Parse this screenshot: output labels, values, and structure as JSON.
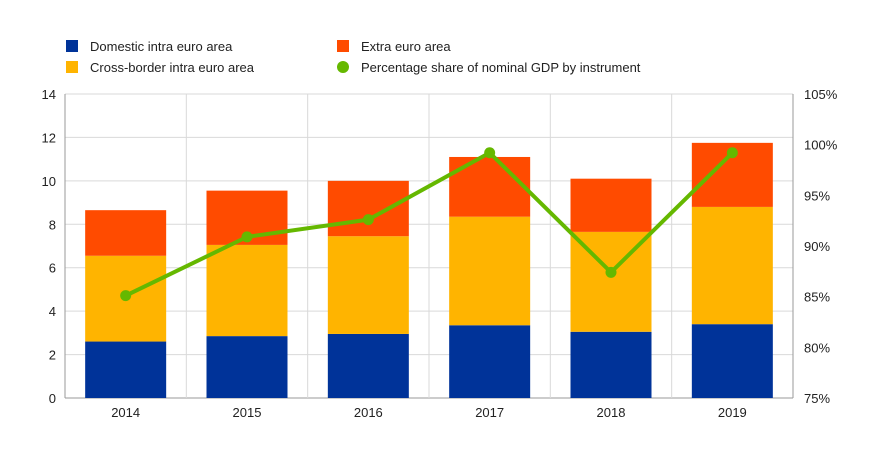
{
  "chart_data": {
    "type": "bar",
    "stacked": true,
    "categories": [
      "2014",
      "2015",
      "2016",
      "2017",
      "2018",
      "2019"
    ],
    "series": [
      {
        "name": "Domestic intra euro area",
        "color": "#003399",
        "values": [
          2.6,
          2.85,
          2.95,
          3.35,
          3.05,
          3.4
        ]
      },
      {
        "name": "Cross-border intra  euro area",
        "color": "#ffb400",
        "values": [
          3.95,
          4.2,
          4.5,
          5.0,
          4.6,
          5.4
        ]
      },
      {
        "name": "Extra euro area",
        "color": "#ff4b00",
        "values": [
          2.1,
          2.5,
          2.55,
          2.75,
          2.45,
          2.95
        ]
      }
    ],
    "line_series": {
      "name": "Percentage share of nominal GDP by instrument",
      "color": "#65b800",
      "axis": "right",
      "values": [
        85.1,
        90.9,
        92.6,
        99.2,
        87.4,
        99.2
      ]
    },
    "y_left": {
      "min": 0,
      "max": 14,
      "ticks": [
        "0",
        "2",
        "4",
        "6",
        "8",
        "10",
        "12",
        "14"
      ]
    },
    "y_right": {
      "min": 75,
      "max": 105,
      "ticks": [
        "75%",
        "80%",
        "85%",
        "90%",
        "95%",
        "100%",
        "105%"
      ]
    },
    "grid": true,
    "legend_position": "top"
  }
}
